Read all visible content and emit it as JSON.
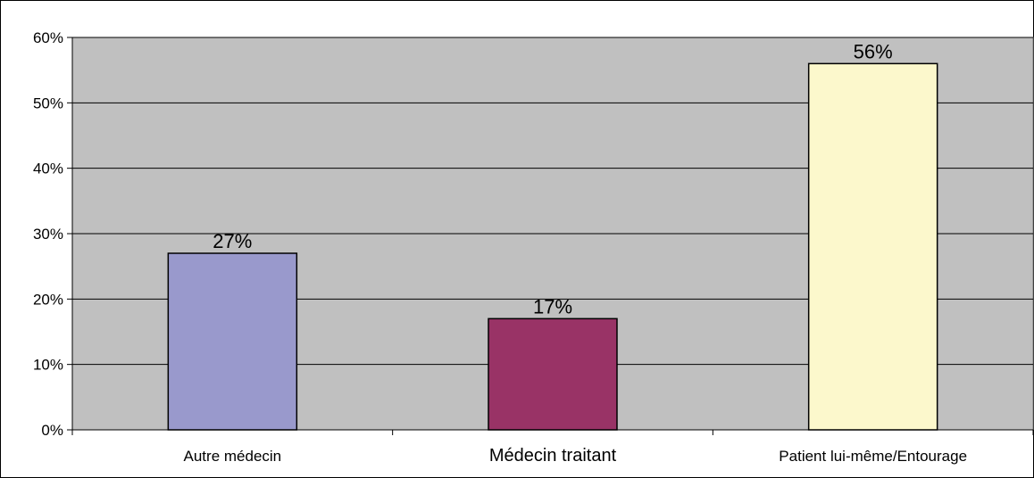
{
  "chart_data": {
    "type": "bar",
    "categories": [
      "Autre médecin",
      "Médecin traitant",
      "Patient lui-même/Entourage"
    ],
    "values": [
      27,
      17,
      56
    ],
    "value_labels": [
      "27%",
      "17%",
      "56%"
    ],
    "bar_colors": [
      "#9999cc",
      "#993366",
      "#fcf8cc"
    ],
    "y_ticks": [
      "0%",
      "10%",
      "20%",
      "30%",
      "40%",
      "50%",
      "60%"
    ],
    "ylim": [
      0,
      60
    ],
    "grid": true,
    "plot_background": "#c0c0c0",
    "legend": "none"
  }
}
